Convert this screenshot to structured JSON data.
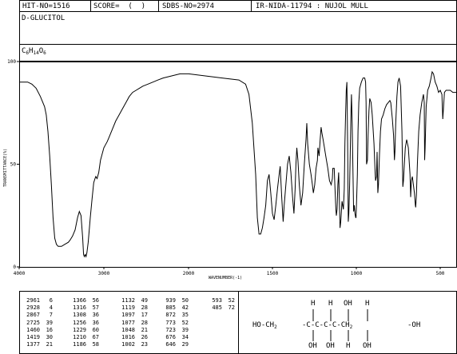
{
  "header": {
    "hit_no": "HIT-NO=1516",
    "score": "SCORE=  (  )",
    "sdbs_no": "SDBS-NO=2974",
    "ir_nida": "IR-NIDA-11794 : NUJOL MULL"
  },
  "compound": {
    "name": "D-GLUCITOL",
    "formula_parts": [
      [
        "C",
        ""
      ],
      [
        "6",
        "sub"
      ],
      [
        "H",
        ""
      ],
      [
        "14",
        "sub"
      ],
      [
        "O",
        ""
      ],
      [
        "6",
        "sub"
      ]
    ]
  },
  "chart_data": {
    "type": "line",
    "xlabel": "WAVENUMBER(-1)",
    "ylabel": "TRANSMITTANCE(%)",
    "xlim": [
      4000,
      400
    ],
    "ylim": [
      0,
      100
    ],
    "x_ticks": [
      4000,
      3000,
      2000,
      1500,
      1000,
      500
    ],
    "y_ticks": [
      0,
      50,
      100
    ],
    "grid": false,
    "series": [
      {
        "name": "",
        "points": [
          [
            4000,
            90
          ],
          [
            3900,
            90
          ],
          [
            3850,
            89
          ],
          [
            3800,
            87
          ],
          [
            3750,
            83
          ],
          [
            3700,
            78
          ],
          [
            3680,
            74
          ],
          [
            3660,
            66
          ],
          [
            3640,
            54
          ],
          [
            3620,
            40
          ],
          [
            3600,
            24
          ],
          [
            3580,
            14
          ],
          [
            3560,
            11
          ],
          [
            3540,
            10
          ],
          [
            3520,
            10
          ],
          [
            3500,
            10
          ],
          [
            3460,
            11
          ],
          [
            3420,
            12
          ],
          [
            3400,
            13
          ],
          [
            3370,
            15
          ],
          [
            3340,
            18
          ],
          [
            3310,
            24
          ],
          [
            3290,
            27
          ],
          [
            3270,
            25
          ],
          [
            3250,
            14
          ],
          [
            3240,
            6
          ],
          [
            3230,
            5
          ],
          [
            3220,
            6
          ],
          [
            3210,
            5
          ],
          [
            3200,
            7
          ],
          [
            3185,
            12
          ],
          [
            3160,
            24
          ],
          [
            3140,
            33
          ],
          [
            3120,
            41
          ],
          [
            3105,
            43
          ],
          [
            3095,
            44
          ],
          [
            3080,
            43
          ],
          [
            3060,
            46
          ],
          [
            3040,
            52
          ],
          [
            3000,
            58
          ],
          [
            2960,
            61
          ],
          [
            2940,
            63
          ],
          [
            2900,
            67
          ],
          [
            2860,
            71
          ],
          [
            2820,
            74
          ],
          [
            2780,
            77
          ],
          [
            2740,
            80
          ],
          [
            2700,
            83
          ],
          [
            2660,
            85
          ],
          [
            2620,
            86
          ],
          [
            2580,
            87
          ],
          [
            2540,
            88
          ],
          [
            2480,
            89
          ],
          [
            2420,
            90
          ],
          [
            2360,
            91
          ],
          [
            2300,
            92
          ],
          [
            2200,
            93
          ],
          [
            2100,
            94
          ],
          [
            2000,
            94
          ],
          [
            1900,
            93
          ],
          [
            1800,
            92
          ],
          [
            1700,
            91
          ],
          [
            1660,
            89
          ],
          [
            1640,
            84
          ],
          [
            1620,
            70
          ],
          [
            1600,
            45
          ],
          [
            1590,
            24
          ],
          [
            1580,
            16
          ],
          [
            1570,
            16
          ],
          [
            1560,
            19
          ],
          [
            1550,
            24
          ],
          [
            1540,
            30
          ],
          [
            1530,
            42
          ],
          [
            1520,
            45
          ],
          [
            1510,
            36
          ],
          [
            1500,
            26
          ],
          [
            1490,
            23
          ],
          [
            1480,
            30
          ],
          [
            1470,
            38
          ],
          [
            1460,
            45
          ],
          [
            1454,
            49
          ],
          [
            1445,
            34
          ],
          [
            1436,
            22
          ],
          [
            1430,
            30
          ],
          [
            1420,
            40
          ],
          [
            1410,
            50
          ],
          [
            1400,
            54
          ],
          [
            1390,
            46
          ],
          [
            1380,
            34
          ],
          [
            1372,
            26
          ],
          [
            1365,
            38
          ],
          [
            1360,
            50
          ],
          [
            1355,
            58
          ],
          [
            1348,
            52
          ],
          [
            1340,
            40
          ],
          [
            1330,
            30
          ],
          [
            1320,
            36
          ],
          [
            1310,
            50
          ],
          [
            1300,
            62
          ],
          [
            1295,
            70
          ],
          [
            1290,
            60
          ],
          [
            1280,
            50
          ],
          [
            1270,
            45
          ],
          [
            1262,
            40
          ],
          [
            1256,
            36
          ],
          [
            1248,
            40
          ],
          [
            1240,
            48
          ],
          [
            1232,
            52
          ],
          [
            1229,
            58
          ],
          [
            1222,
            54
          ],
          [
            1215,
            63
          ],
          [
            1210,
            68
          ],
          [
            1205,
            65
          ],
          [
            1198,
            62
          ],
          [
            1190,
            58
          ],
          [
            1186,
            56
          ],
          [
            1178,
            52
          ],
          [
            1170,
            48
          ],
          [
            1160,
            42
          ],
          [
            1150,
            40
          ],
          [
            1143,
            43
          ],
          [
            1140,
            48
          ],
          [
            1132,
            48
          ],
          [
            1128,
            40
          ],
          [
            1122,
            28
          ],
          [
            1119,
            25
          ],
          [
            1115,
            28
          ],
          [
            1110,
            40
          ],
          [
            1105,
            46
          ],
          [
            1097,
            19
          ],
          [
            1093,
            22
          ],
          [
            1085,
            32
          ],
          [
            1077,
            28
          ],
          [
            1072,
            38
          ],
          [
            1068,
            60
          ],
          [
            1064,
            75
          ],
          [
            1060,
            86
          ],
          [
            1056,
            90
          ],
          [
            1052,
            60
          ],
          [
            1048,
            22
          ],
          [
            1045,
            26
          ],
          [
            1040,
            40
          ],
          [
            1035,
            60
          ],
          [
            1032,
            75
          ],
          [
            1029,
            84
          ],
          [
            1025,
            70
          ],
          [
            1016,
            27
          ],
          [
            1012,
            30
          ],
          [
            1008,
            26
          ],
          [
            1004,
            24
          ],
          [
            1002,
            24
          ],
          [
            998,
            33
          ],
          [
            994,
            45
          ],
          [
            990,
            66
          ],
          [
            985,
            80
          ],
          [
            980,
            87
          ],
          [
            970,
            90
          ],
          [
            960,
            92
          ],
          [
            950,
            92
          ],
          [
            945,
            90
          ],
          [
            942,
            80
          ],
          [
            939,
            50
          ],
          [
            934,
            52
          ],
          [
            930,
            64
          ],
          [
            925,
            76
          ],
          [
            920,
            82
          ],
          [
            912,
            80
          ],
          [
            905,
            74
          ],
          [
            895,
            60
          ],
          [
            888,
            46
          ],
          [
            885,
            42
          ],
          [
            880,
            44
          ],
          [
            876,
            56
          ],
          [
            872,
            36
          ],
          [
            868,
            40
          ],
          [
            862,
            55
          ],
          [
            856,
            66
          ],
          [
            850,
            72
          ],
          [
            840,
            74
          ],
          [
            830,
            77
          ],
          [
            820,
            79
          ],
          [
            810,
            80
          ],
          [
            800,
            81
          ],
          [
            795,
            80
          ],
          [
            785,
            72
          ],
          [
            778,
            64
          ],
          [
            773,
            52
          ],
          [
            770,
            56
          ],
          [
            765,
            70
          ],
          [
            758,
            83
          ],
          [
            752,
            90
          ],
          [
            745,
            92
          ],
          [
            736,
            88
          ],
          [
            728,
            66
          ],
          [
            723,
            39
          ],
          [
            719,
            42
          ],
          [
            714,
            50
          ],
          [
            708,
            58
          ],
          [
            700,
            62
          ],
          [
            690,
            58
          ],
          [
            680,
            45
          ],
          [
            676,
            34
          ],
          [
            672,
            42
          ],
          [
            666,
            44
          ],
          [
            660,
            40
          ],
          [
            654,
            36
          ],
          [
            648,
            30
          ],
          [
            646,
            29
          ],
          [
            642,
            35
          ],
          [
            636,
            50
          ],
          [
            628,
            66
          ],
          [
            620,
            74
          ],
          [
            610,
            80
          ],
          [
            600,
            84
          ],
          [
            595,
            80
          ],
          [
            593,
            52
          ],
          [
            590,
            58
          ],
          [
            584,
            78
          ],
          [
            575,
            86
          ],
          [
            565,
            88
          ],
          [
            555,
            92
          ],
          [
            548,
            95
          ],
          [
            540,
            94
          ],
          [
            530,
            90
          ],
          [
            520,
            88
          ],
          [
            510,
            85
          ],
          [
            500,
            86
          ],
          [
            490,
            84
          ],
          [
            485,
            72
          ],
          [
            480,
            78
          ],
          [
            475,
            85
          ],
          [
            465,
            86
          ],
          [
            455,
            86
          ],
          [
            440,
            86
          ],
          [
            425,
            85
          ],
          [
            410,
            85
          ],
          [
            400,
            85
          ]
        ]
      }
    ],
    "peak_table": [
      [
        "2961",
        "6"
      ],
      [
        "2928",
        "4"
      ],
      [
        "2867",
        "7"
      ],
      [
        "2725",
        "39"
      ],
      [
        "1460",
        "16"
      ],
      [
        "1419",
        "30"
      ],
      [
        "1377",
        "21"
      ],
      [
        "1366",
        "56"
      ],
      [
        "1316",
        "57"
      ],
      [
        "1308",
        "36"
      ],
      [
        "1256",
        "36"
      ],
      [
        "1229",
        "60"
      ],
      [
        "1210",
        "67"
      ],
      [
        "1186",
        "58"
      ],
      [
        "1132",
        "49"
      ],
      [
        "1119",
        "28"
      ],
      [
        "1097",
        "17"
      ],
      [
        "1077",
        "28"
      ],
      [
        "1048",
        "21"
      ],
      [
        "1016",
        "26"
      ],
      [
        "1002",
        "23"
      ],
      [
        "939",
        "50"
      ],
      [
        "885",
        "42"
      ],
      [
        "872",
        "35"
      ],
      [
        "773",
        "52"
      ],
      [
        "723",
        "39"
      ],
      [
        "676",
        "34"
      ],
      [
        "646",
        "29"
      ],
      [
        "593",
        "52"
      ],
      [
        "485",
        "72"
      ]
    ]
  },
  "structure": {
    "left": "HO-CH",
    "sub2": "2",
    "chain": "-C-C-C-C-CH",
    "sub2b": "2",
    "right": "-OH",
    "top": [
      "H",
      "H",
      "OH",
      "H"
    ],
    "bottom": [
      "OH",
      "OH",
      "H",
      "OH"
    ]
  }
}
